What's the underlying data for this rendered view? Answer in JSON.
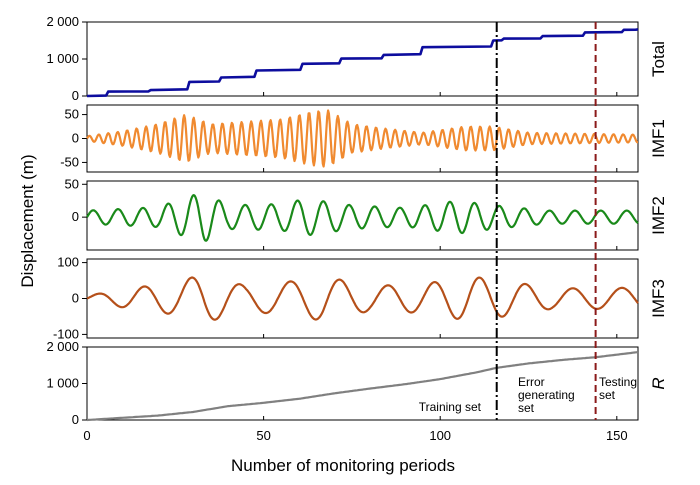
{
  "chart_data": {
    "type": "line",
    "xlabel": "Number of monitoring periods",
    "ylabel": "Displacement (m)",
    "xlim": [
      0,
      156
    ],
    "x_ticks": [
      0,
      50,
      100,
      150
    ],
    "x_tick_labels": [
      "0",
      "50",
      "100",
      "150"
    ],
    "split_lines": [
      {
        "x": 116,
        "style": "dash-dot",
        "color": "#000000"
      },
      {
        "x": 144,
        "style": "dashed",
        "color": "#8b1a1a"
      }
    ],
    "annotations": {
      "training": "Training set",
      "error_lines": [
        "Error",
        "generating",
        "set"
      ],
      "testing_lines": [
        "Testing",
        "set"
      ]
    },
    "panels": [
      {
        "label": "Total",
        "label_italic": false,
        "color": "#0d0d9e",
        "ylim": [
          0,
          2000
        ],
        "y_ticks": [
          0,
          1000,
          2000
        ],
        "y_tick_labels": [
          "0",
          "1 000",
          "2 000"
        ],
        "kind": "steps",
        "steps": [
          [
            0,
            0
          ],
          [
            6,
            120
          ],
          [
            18,
            160
          ],
          [
            29,
            380
          ],
          [
            38,
            500
          ],
          [
            48,
            690
          ],
          [
            61,
            870
          ],
          [
            72,
            1010
          ],
          [
            84,
            1110
          ],
          [
            95,
            1320
          ],
          [
            115,
            1500
          ],
          [
            118,
            1550
          ],
          [
            129,
            1620
          ],
          [
            141,
            1720
          ],
          [
            152,
            1790
          ],
          [
            156,
            1800
          ]
        ]
      },
      {
        "label": "IMF1",
        "label_italic": false,
        "color": "#f08a30",
        "ylim": [
          -70,
          70
        ],
        "y_ticks": [
          -50,
          0,
          50
        ],
        "y_tick_labels": [
          "-50",
          "0",
          "50"
        ],
        "kind": "oscillation",
        "period": 2.7,
        "amp_envelope": [
          [
            0,
            5
          ],
          [
            10,
            15
          ],
          [
            20,
            30
          ],
          [
            28,
            50
          ],
          [
            35,
            30
          ],
          [
            45,
            35
          ],
          [
            55,
            40
          ],
          [
            63,
            55
          ],
          [
            68,
            60
          ],
          [
            75,
            30
          ],
          [
            85,
            20
          ],
          [
            95,
            12
          ],
          [
            107,
            25
          ],
          [
            115,
            25
          ],
          [
            125,
            12
          ],
          [
            140,
            10
          ],
          [
            156,
            8
          ]
        ]
      },
      {
        "label": "IMF2",
        "label_italic": false,
        "color": "#1a8a1a",
        "ylim": [
          -50,
          55
        ],
        "y_ticks": [
          0,
          50
        ],
        "y_tick_labels": [
          "0",
          "50"
        ],
        "kind": "oscillation",
        "period": 7.2,
        "amp_envelope": [
          [
            0,
            10
          ],
          [
            20,
            15
          ],
          [
            28,
            30
          ],
          [
            33,
            38
          ],
          [
            40,
            18
          ],
          [
            55,
            20
          ],
          [
            62,
            28
          ],
          [
            75,
            18
          ],
          [
            90,
            14
          ],
          [
            105,
            25
          ],
          [
            115,
            18
          ],
          [
            130,
            10
          ],
          [
            156,
            10
          ]
        ]
      },
      {
        "label": "IMF3",
        "label_italic": false,
        "color": "#b5501a",
        "ylim": [
          -110,
          110
        ],
        "y_ticks": [
          -100,
          0,
          100
        ],
        "y_tick_labels": [
          "-100",
          "0",
          "100"
        ],
        "kind": "oscillation",
        "period": 13.5,
        "amp_envelope": [
          [
            0,
            8
          ],
          [
            12,
            28
          ],
          [
            25,
            45
          ],
          [
            33,
            68
          ],
          [
            45,
            35
          ],
          [
            58,
            48
          ],
          [
            67,
            62
          ],
          [
            80,
            35
          ],
          [
            95,
            40
          ],
          [
            108,
            62
          ],
          [
            118,
            50
          ],
          [
            132,
            28
          ],
          [
            156,
            30
          ]
        ]
      },
      {
        "label": "R",
        "label_italic": true,
        "color": "#808080",
        "ylim": [
          0,
          2000
        ],
        "y_ticks": [
          0,
          1000,
          2000
        ],
        "y_tick_labels": [
          "0",
          "1 000",
          "2 000"
        ],
        "kind": "smooth",
        "points": [
          [
            0,
            0
          ],
          [
            10,
            60
          ],
          [
            20,
            120
          ],
          [
            30,
            220
          ],
          [
            40,
            380
          ],
          [
            50,
            470
          ],
          [
            60,
            580
          ],
          [
            70,
            730
          ],
          [
            80,
            860
          ],
          [
            90,
            980
          ],
          [
            100,
            1120
          ],
          [
            110,
            1300
          ],
          [
            116,
            1430
          ],
          [
            125,
            1550
          ],
          [
            135,
            1650
          ],
          [
            144,
            1720
          ],
          [
            156,
            1860
          ]
        ]
      }
    ]
  }
}
